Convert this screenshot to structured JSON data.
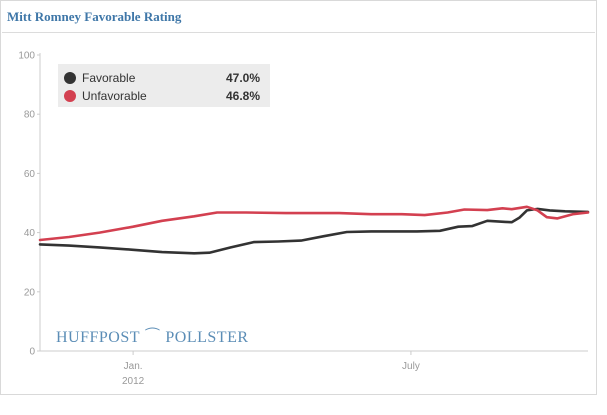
{
  "chart_data": {
    "type": "line",
    "title": "Mitt Romney Favorable Rating",
    "xlabel": "",
    "ylabel": "",
    "ylim": [
      0,
      100
    ],
    "yticks": [
      0,
      20,
      40,
      60,
      80,
      100
    ],
    "xticks": [
      {
        "label": "Jan.",
        "sublabel": "2012",
        "date": "2012-01-01"
      },
      {
        "label": "July",
        "sublabel": "",
        "date": "2012-07-01"
      }
    ],
    "xlim": [
      "2011-11-01",
      "2012-10-25"
    ],
    "grid": false,
    "legend_position": "top-left",
    "series": [
      {
        "name": "Favorable",
        "color": "#333333",
        "current_value": "47.0%",
        "points": [
          [
            "2011-11-01",
            36.0
          ],
          [
            "2011-11-20",
            35.6
          ],
          [
            "2011-12-10",
            35.0
          ],
          [
            "2012-01-01",
            34.2
          ],
          [
            "2012-01-20",
            33.4
          ],
          [
            "2012-02-10",
            33.0
          ],
          [
            "2012-02-20",
            33.2
          ],
          [
            "2012-03-05",
            35.0
          ],
          [
            "2012-03-20",
            36.8
          ],
          [
            "2012-04-05",
            37.0
          ],
          [
            "2012-04-20",
            37.3
          ],
          [
            "2012-05-05",
            38.8
          ],
          [
            "2012-05-20",
            40.2
          ],
          [
            "2012-06-05",
            40.4
          ],
          [
            "2012-06-20",
            40.4
          ],
          [
            "2012-07-05",
            40.4
          ],
          [
            "2012-07-20",
            40.6
          ],
          [
            "2012-08-01",
            42.0
          ],
          [
            "2012-08-10",
            42.2
          ],
          [
            "2012-08-20",
            44.0
          ],
          [
            "2012-09-01",
            43.6
          ],
          [
            "2012-09-05",
            43.5
          ],
          [
            "2012-09-10",
            45.0
          ],
          [
            "2012-09-15",
            47.5
          ],
          [
            "2012-09-22",
            48.0
          ],
          [
            "2012-09-30",
            47.5
          ],
          [
            "2012-10-10",
            47.2
          ],
          [
            "2012-10-25",
            47.0
          ]
        ]
      },
      {
        "name": "Unfavorable",
        "color": "#d34050",
        "current_value": "46.8%",
        "points": [
          [
            "2011-11-01",
            37.5
          ],
          [
            "2011-11-20",
            38.5
          ],
          [
            "2011-12-10",
            40.0
          ],
          [
            "2012-01-01",
            42.0
          ],
          [
            "2012-01-20",
            44.0
          ],
          [
            "2012-02-10",
            45.5
          ],
          [
            "2012-02-25",
            46.8
          ],
          [
            "2012-03-15",
            46.8
          ],
          [
            "2012-04-10",
            46.6
          ],
          [
            "2012-05-15",
            46.6
          ],
          [
            "2012-06-05",
            46.2
          ],
          [
            "2012-06-25",
            46.2
          ],
          [
            "2012-07-10",
            45.9
          ],
          [
            "2012-07-25",
            46.8
          ],
          [
            "2012-08-05",
            47.8
          ],
          [
            "2012-08-20",
            47.6
          ],
          [
            "2012-08-30",
            48.2
          ],
          [
            "2012-09-05",
            47.9
          ],
          [
            "2012-09-15",
            48.7
          ],
          [
            "2012-09-22",
            47.5
          ],
          [
            "2012-09-28",
            45.2
          ],
          [
            "2012-10-05",
            44.8
          ],
          [
            "2012-10-15",
            46.2
          ],
          [
            "2012-10-25",
            46.8
          ]
        ]
      }
    ]
  },
  "watermark": {
    "left": "HUFFPOST",
    "right": "POLLSTER"
  }
}
